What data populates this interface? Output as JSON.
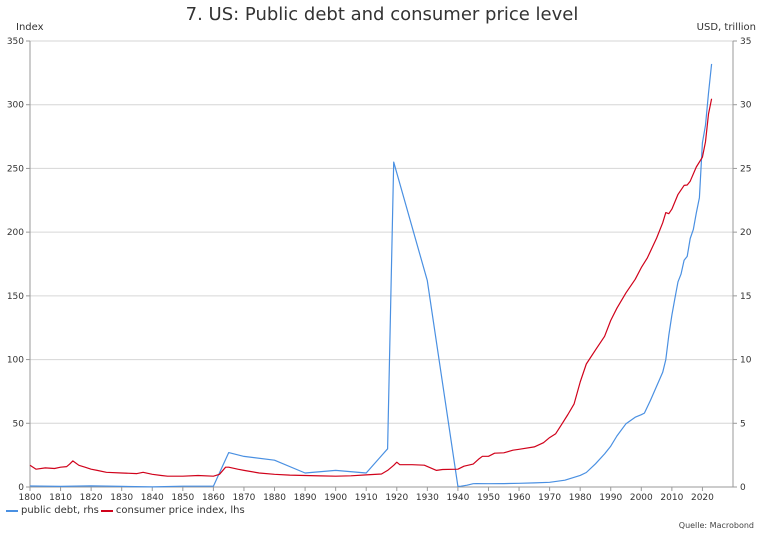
{
  "chart_data": {
    "type": "line",
    "title": "7. US: Public debt and consumer price level",
    "left_axis": {
      "unit": "Index",
      "ylim": [
        0,
        350
      ],
      "ticks": [
        0,
        50,
        100,
        150,
        200,
        250,
        300,
        350
      ]
    },
    "right_axis": {
      "unit": "USD, trillion",
      "ylim": [
        0,
        35
      ],
      "ticks": [
        0,
        5,
        10,
        15,
        20,
        25,
        30,
        35
      ]
    },
    "x_axis": {
      "xlim": [
        1800,
        2030
      ],
      "ticks": [
        1800,
        1810,
        1820,
        1830,
        1840,
        1850,
        1860,
        1870,
        1880,
        1890,
        1900,
        1910,
        1920,
        1930,
        1940,
        1950,
        1960,
        1970,
        1980,
        1990,
        2000,
        2010,
        2020
      ]
    },
    "grid": {
      "horizontal": true,
      "vertical": false
    },
    "legend_placement": "bottom-left",
    "series": [
      {
        "name": "public debt, rhs",
        "axis": "right",
        "color": "#4a90e2",
        "points": [
          [
            1800,
            0.08
          ],
          [
            1810,
            0.05
          ],
          [
            1820,
            0.09
          ],
          [
            1830,
            0.05
          ],
          [
            1840,
            0.004
          ],
          [
            1850,
            0.06
          ],
          [
            1860,
            0.06
          ],
          [
            1865,
            2.7
          ],
          [
            1870,
            2.4
          ],
          [
            1880,
            2.1
          ],
          [
            1890,
            1.1
          ],
          [
            1900,
            1.3
          ],
          [
            1910,
            1.1
          ],
          [
            1917,
            3.0
          ],
          [
            1919,
            25.5
          ],
          [
            1930,
            16.2
          ],
          [
            1940,
            0.05
          ],
          [
            1941,
            0.06
          ],
          [
            1943,
            0.14
          ],
          [
            1945,
            0.26
          ],
          [
            1946,
            0.27
          ],
          [
            1950,
            0.26
          ],
          [
            1955,
            0.27
          ],
          [
            1960,
            0.29
          ],
          [
            1965,
            0.32
          ],
          [
            1970,
            0.37
          ],
          [
            1975,
            0.53
          ],
          [
            1980,
            0.91
          ],
          [
            1982,
            1.14
          ],
          [
            1985,
            1.82
          ],
          [
            1988,
            2.6
          ],
          [
            1990,
            3.2
          ],
          [
            1992,
            4.0
          ],
          [
            1995,
            4.97
          ],
          [
            1998,
            5.48
          ],
          [
            2000,
            5.67
          ],
          [
            2001,
            5.8
          ],
          [
            2003,
            6.8
          ],
          [
            2005,
            7.9
          ],
          [
            2007,
            9.0
          ],
          [
            2008,
            10.0
          ],
          [
            2009,
            11.9
          ],
          [
            2010,
            13.5
          ],
          [
            2011,
            14.8
          ],
          [
            2012,
            16.1
          ],
          [
            2013,
            16.7
          ],
          [
            2014,
            17.8
          ],
          [
            2015,
            18.1
          ],
          [
            2016,
            19.5
          ],
          [
            2017,
            20.2
          ],
          [
            2018,
            21.5
          ],
          [
            2019,
            22.7
          ],
          [
            2020,
            27.0
          ],
          [
            2021,
            28.4
          ],
          [
            2022,
            30.9
          ],
          [
            2023,
            33.2
          ]
        ]
      },
      {
        "name": "consumer price index, lhs",
        "axis": "left",
        "color": "#d0021b",
        "points": [
          [
            1800,
            17
          ],
          [
            1802,
            14
          ],
          [
            1805,
            15
          ],
          [
            1808,
            14.5
          ],
          [
            1810,
            15.5
          ],
          [
            1812,
            16
          ],
          [
            1813,
            18
          ],
          [
            1814,
            20.5
          ],
          [
            1816,
            17
          ],
          [
            1818,
            15.5
          ],
          [
            1820,
            14
          ],
          [
            1822,
            13
          ],
          [
            1825,
            11.5
          ],
          [
            1830,
            11
          ],
          [
            1835,
            10.5
          ],
          [
            1837,
            11.5
          ],
          [
            1840,
            10
          ],
          [
            1843,
            9
          ],
          [
            1845,
            8.5
          ],
          [
            1850,
            8.5
          ],
          [
            1855,
            9
          ],
          [
            1860,
            8.5
          ],
          [
            1862,
            10
          ],
          [
            1864,
            15.5
          ],
          [
            1865,
            15.5
          ],
          [
            1868,
            14
          ],
          [
            1870,
            13
          ],
          [
            1875,
            11
          ],
          [
            1880,
            10
          ],
          [
            1885,
            9.3
          ],
          [
            1890,
            9
          ],
          [
            1895,
            8.7
          ],
          [
            1900,
            8.5
          ],
          [
            1905,
            8.8
          ],
          [
            1910,
            9.5
          ],
          [
            1915,
            10.2
          ],
          [
            1917,
            13
          ],
          [
            1919,
            17
          ],
          [
            1920,
            19.5
          ],
          [
            1921,
            17.5
          ],
          [
            1925,
            17.5
          ],
          [
            1929,
            17.1
          ],
          [
            1933,
            13
          ],
          [
            1935,
            13.7
          ],
          [
            1940,
            14
          ],
          [
            1942,
            16.3
          ],
          [
            1945,
            18
          ],
          [
            1947,
            22.3
          ],
          [
            1948,
            24.1
          ],
          [
            1950,
            24.1
          ],
          [
            1952,
            26.5
          ],
          [
            1955,
            26.8
          ],
          [
            1958,
            28.9
          ],
          [
            1960,
            29.6
          ],
          [
            1965,
            31.5
          ],
          [
            1968,
            34.8
          ],
          [
            1970,
            38.8
          ],
          [
            1972,
            41.8
          ],
          [
            1974,
            49.3
          ],
          [
            1976,
            56.9
          ],
          [
            1978,
            65.2
          ],
          [
            1980,
            82.4
          ],
          [
            1982,
            96.5
          ],
          [
            1985,
            107.6
          ],
          [
            1988,
            118.3
          ],
          [
            1990,
            130.7
          ],
          [
            1992,
            140.3
          ],
          [
            1995,
            152.4
          ],
          [
            1998,
            163.0
          ],
          [
            2000,
            172.2
          ],
          [
            2002,
            179.9
          ],
          [
            2005,
            195.3
          ],
          [
            2007,
            207.3
          ],
          [
            2008,
            215.3
          ],
          [
            2009,
            214.5
          ],
          [
            2010,
            218.1
          ],
          [
            2012,
            229.6
          ],
          [
            2014,
            236.7
          ],
          [
            2015,
            237.0
          ],
          [
            2016,
            240.0
          ],
          [
            2018,
            251.1
          ],
          [
            2020,
            258.8
          ],
          [
            2021,
            271.0
          ],
          [
            2022,
            292.7
          ],
          [
            2023,
            304.7
          ]
        ]
      }
    ]
  },
  "source_text": "Quelle: Macrobond"
}
